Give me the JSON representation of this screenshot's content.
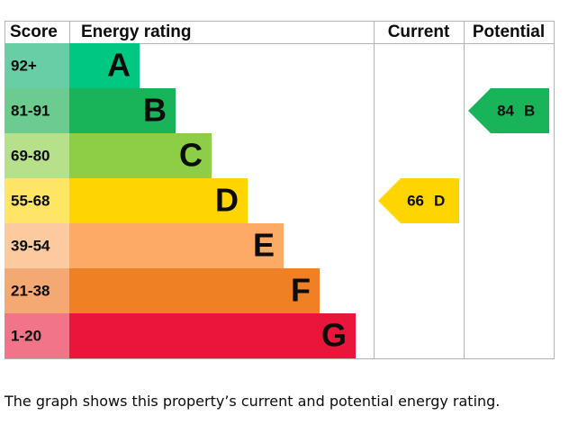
{
  "chart_data": {
    "type": "epc",
    "headers": [
      "Score",
      "Energy rating",
      "Current",
      "Potential"
    ],
    "bands": [
      {
        "score": "92+",
        "letter": "A",
        "color": "#00c781",
        "score_color": "#67cea5"
      },
      {
        "score": "81-91",
        "letter": "B",
        "color": "#19b459",
        "score_color": "#6ccb8e"
      },
      {
        "score": "69-80",
        "letter": "C",
        "color": "#8dce46",
        "score_color": "#b7e08a"
      },
      {
        "score": "55-68",
        "letter": "D",
        "color": "#ffd500",
        "score_color": "#ffe566"
      },
      {
        "score": "39-54",
        "letter": "E",
        "color": "#fcaa65",
        "score_color": "#fdcaa0"
      },
      {
        "score": "21-38",
        "letter": "F",
        "color": "#ef8023",
        "score_color": "#f5a972"
      },
      {
        "score": "1-20",
        "letter": "G",
        "color": "#e9153b",
        "score_color": "#f27489"
      }
    ],
    "current": {
      "value": 66,
      "letter": "D"
    },
    "potential": {
      "value": 84,
      "letter": "B"
    },
    "note": "The graph shows this property’s current and potential energy rating."
  }
}
